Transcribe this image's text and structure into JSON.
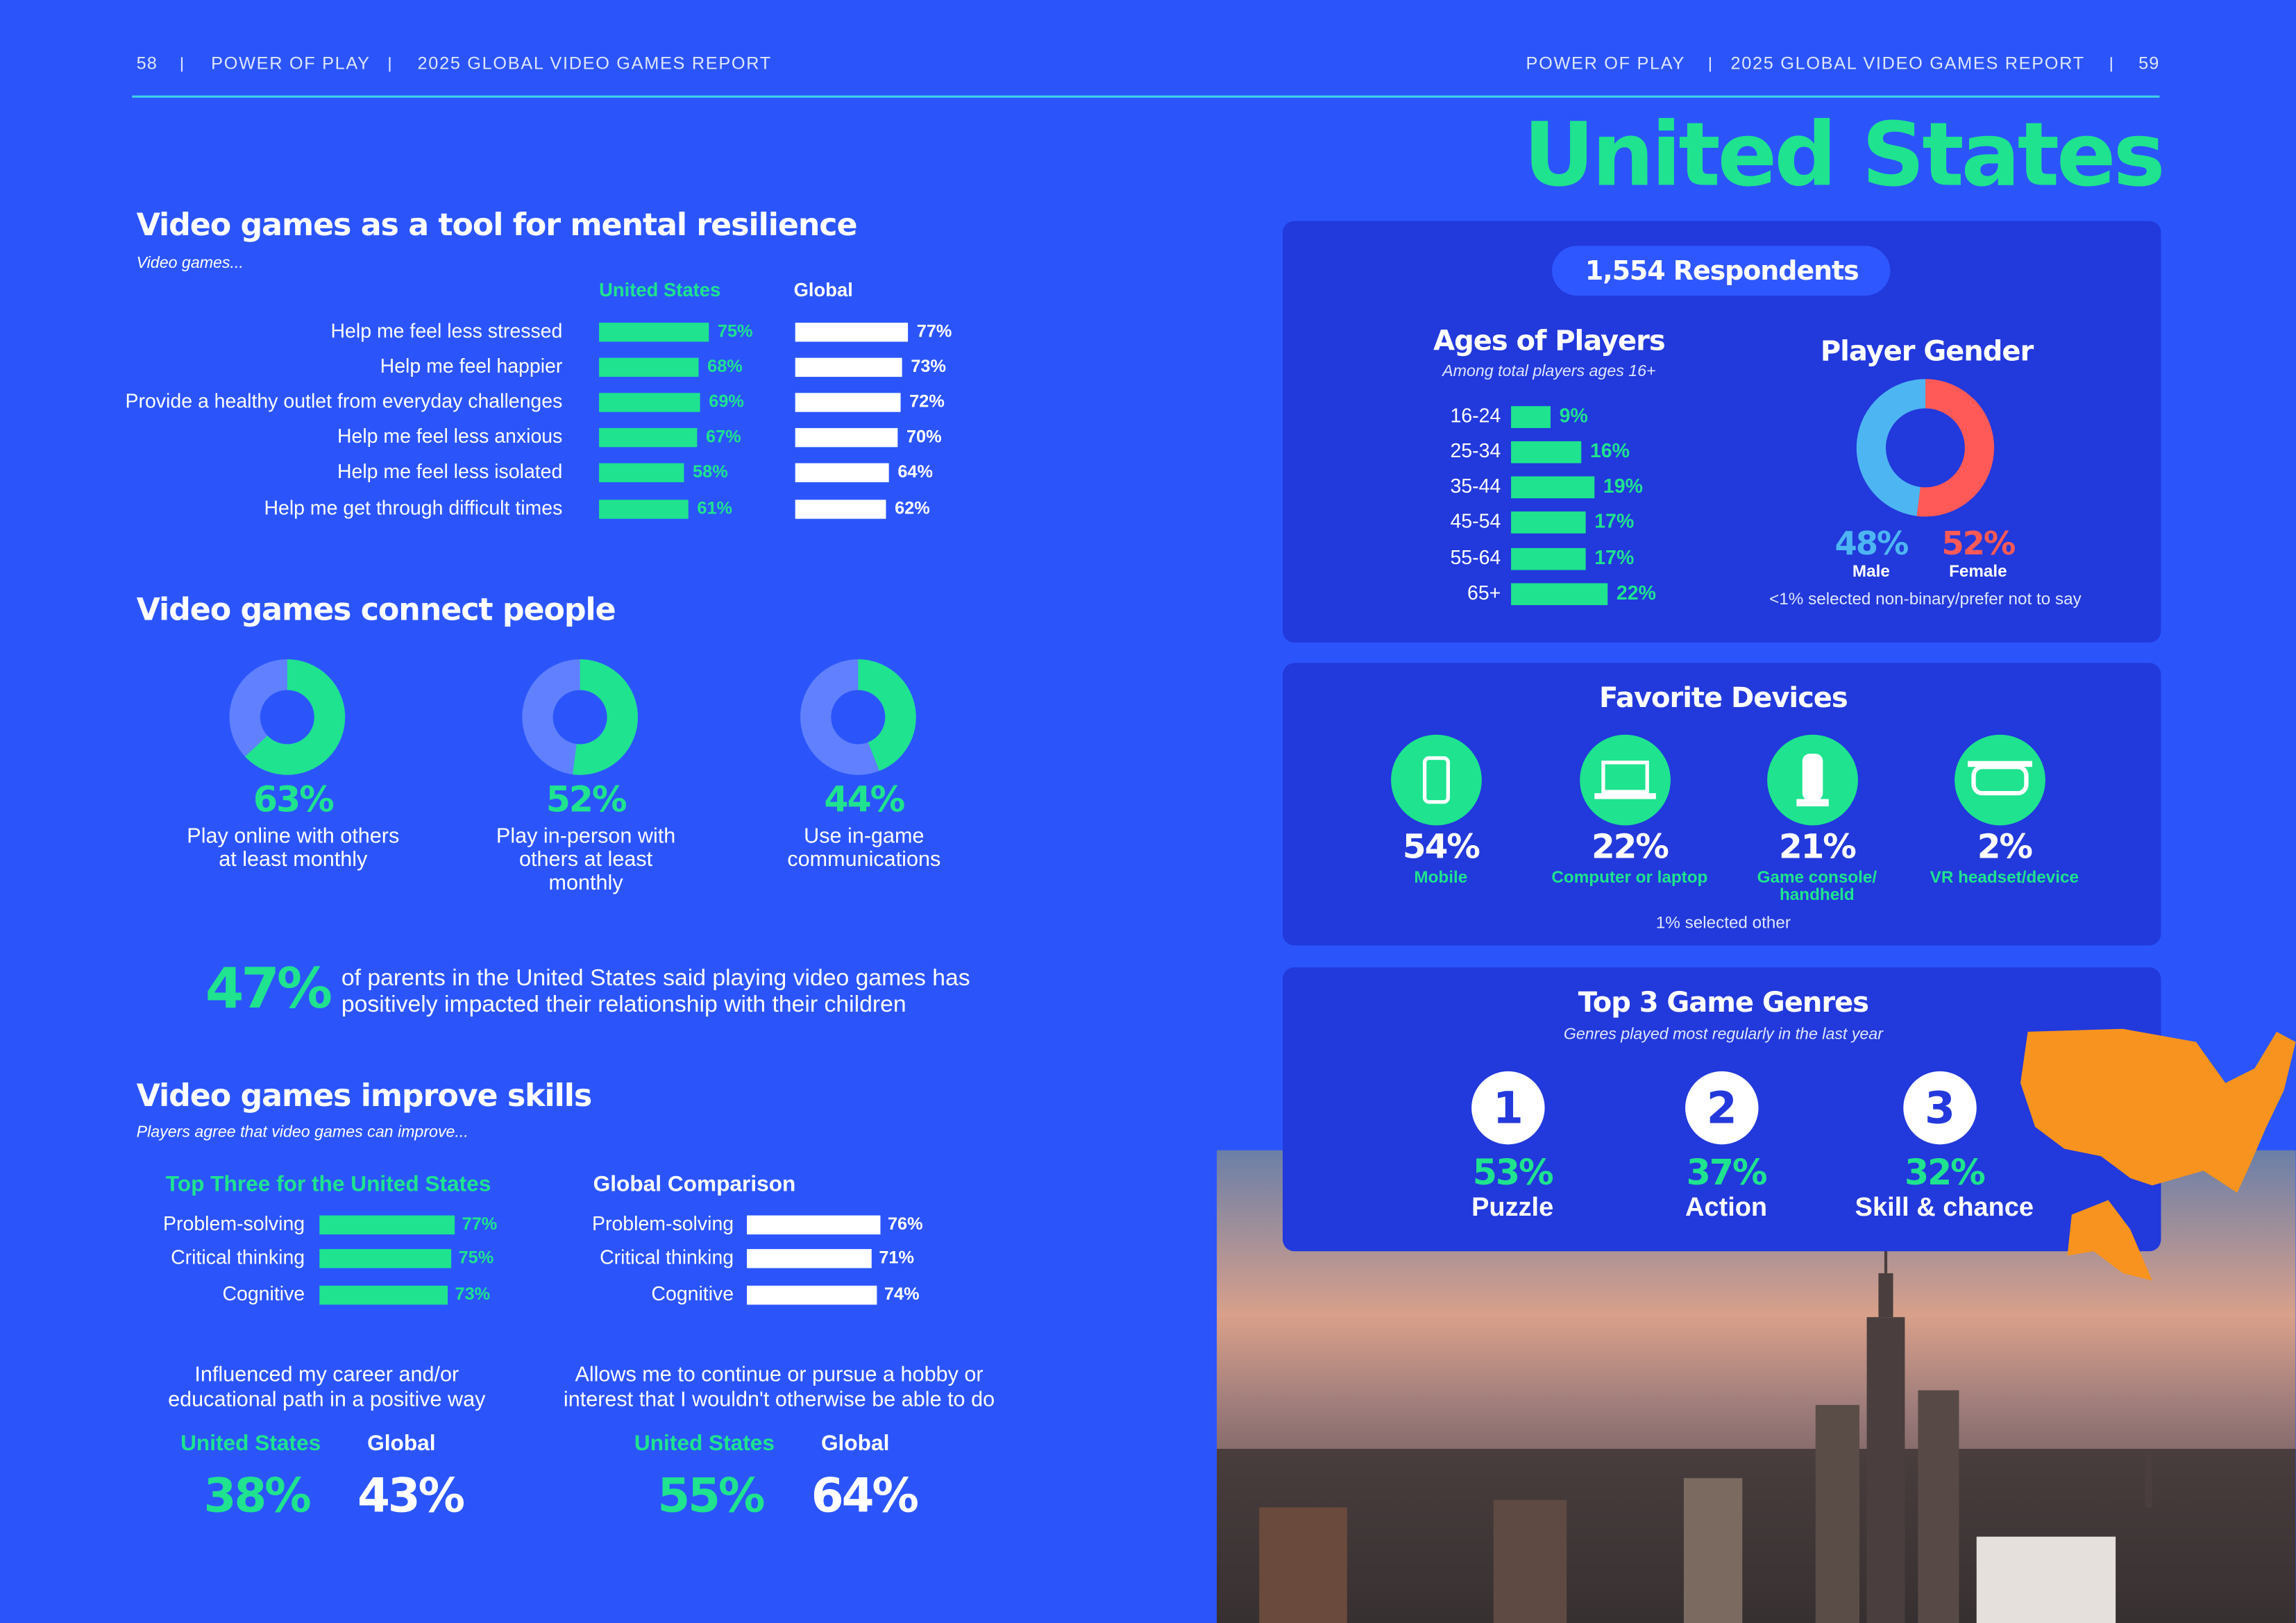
{
  "header": {
    "left_page": "58",
    "left_title": "POWER OF PLAY",
    "left_report": "2025 GLOBAL VIDEO GAMES REPORT",
    "right_title": "POWER OF PLAY",
    "right_report": "2025 GLOBAL VIDEO GAMES REPORT",
    "right_page": "59"
  },
  "country": "United States",
  "resilience": {
    "title": "Video games as a tool for mental resilience",
    "subtitle": "Video games...",
    "us_heading": "United States",
    "global_heading": "Global",
    "items": [
      {
        "label": "Help me feel less stressed",
        "us": 75,
        "us_label": "75%",
        "global": 77,
        "global_label": "77%"
      },
      {
        "label": "Help me feel happier",
        "us": 68,
        "us_label": "68%",
        "global": 73,
        "global_label": "73%"
      },
      {
        "label": "Provide a healthy outlet from everyday challenges",
        "us": 69,
        "us_label": "69%",
        "global": 72,
        "global_label": "72%"
      },
      {
        "label": "Help me feel less anxious",
        "us": 67,
        "us_label": "67%",
        "global": 70,
        "global_label": "70%"
      },
      {
        "label": "Help me feel less isolated",
        "us": 58,
        "us_label": "58%",
        "global": 64,
        "global_label": "64%"
      },
      {
        "label": "Help me get through difficult times",
        "us": 61,
        "us_label": "61%",
        "global": 62,
        "global_label": "62%"
      }
    ]
  },
  "connect": {
    "title": "Video games connect people",
    "items": [
      {
        "value": 63,
        "value_label": "63%",
        "text": [
          "Play online with others",
          "at least monthly"
        ]
      },
      {
        "value": 52,
        "value_label": "52%",
        "text": [
          "Play in-person with",
          "others at least",
          "monthly"
        ]
      },
      {
        "value": 44,
        "value_label": "44%",
        "text": [
          "Use in-game",
          "communications"
        ]
      }
    ]
  },
  "parents": {
    "value_label": "47%",
    "text": [
      "of parents in the United States said playing video games has",
      "positively impacted their relationship with their children"
    ]
  },
  "skills": {
    "title": "Video games improve skills",
    "subtitle": "Players agree that video games can improve...",
    "us_heading": "Top Three for the United States",
    "global_heading": "Global Comparison",
    "us_items": [
      {
        "label": "Problem-solving",
        "value": 77,
        "value_label": "77%"
      },
      {
        "label": "Critical thinking",
        "value": 75,
        "value_label": "75%"
      },
      {
        "label": "Cognitive",
        "value": 73,
        "value_label": "73%"
      }
    ],
    "global_items": [
      {
        "label": "Problem-solving",
        "value": 76,
        "value_label": "76%"
      },
      {
        "label": "Critical thinking",
        "value": 71,
        "value_label": "71%"
      },
      {
        "label": "Cognitive",
        "value": 74,
        "value_label": "74%"
      }
    ],
    "stats": [
      {
        "text": [
          "Influenced my career and/or",
          "educational path in a positive way"
        ],
        "us_heading": "United States",
        "global_heading": "Global",
        "us_value": "38%",
        "global_value": "43%"
      },
      {
        "text": [
          "Allows me to continue or pursue a hobby or",
          "interest that I wouldn't otherwise be able to do"
        ],
        "us_heading": "United States",
        "global_heading": "Global",
        "us_value": "55%",
        "global_value": "64%"
      }
    ]
  },
  "respondents": "1,554 Respondents",
  "ages": {
    "title": "Ages of Players",
    "subtitle": "Among total players ages 16+",
    "items": [
      {
        "label": "16-24",
        "value": 9,
        "value_label": "9%"
      },
      {
        "label": "25-34",
        "value": 16,
        "value_label": "16%"
      },
      {
        "label": "35-44",
        "value": 19,
        "value_label": "19%"
      },
      {
        "label": "45-54",
        "value": 17,
        "value_label": "17%"
      },
      {
        "label": "55-64",
        "value": 17,
        "value_label": "17%"
      },
      {
        "label": "65+",
        "value": 22,
        "value_label": "22%"
      }
    ]
  },
  "gender": {
    "title": "Player Gender",
    "male": {
      "value": 48,
      "value_label": "48%",
      "name": "Male"
    },
    "female": {
      "value": 52,
      "value_label": "52%",
      "name": "Female"
    },
    "note": "<1% selected non-binary/prefer not to say"
  },
  "devices": {
    "title": "Favorite Devices",
    "items": [
      {
        "value": 54,
        "value_label": "54%",
        "name": [
          "Mobile"
        ]
      },
      {
        "value": 22,
        "value_label": "22%",
        "name": [
          "Computer or laptop"
        ]
      },
      {
        "value": 21,
        "value_label": "21%",
        "name": [
          "Game console/",
          "handheld"
        ]
      },
      {
        "value": 2,
        "value_label": "2%",
        "name": [
          "VR headset/device"
        ]
      }
    ],
    "note": "1% selected other"
  },
  "genres": {
    "title": "Top 3 Game Genres",
    "subtitle": "Genres played most regularly in the last year",
    "items": [
      {
        "rank": "1",
        "value": 53,
        "value_label": "53%",
        "name": "Puzzle"
      },
      {
        "rank": "2",
        "value": 37,
        "value_label": "37%",
        "name": "Action"
      },
      {
        "rank": "3",
        "value": 32,
        "value_label": "32%",
        "name": "Skill & chance"
      }
    ]
  }
}
